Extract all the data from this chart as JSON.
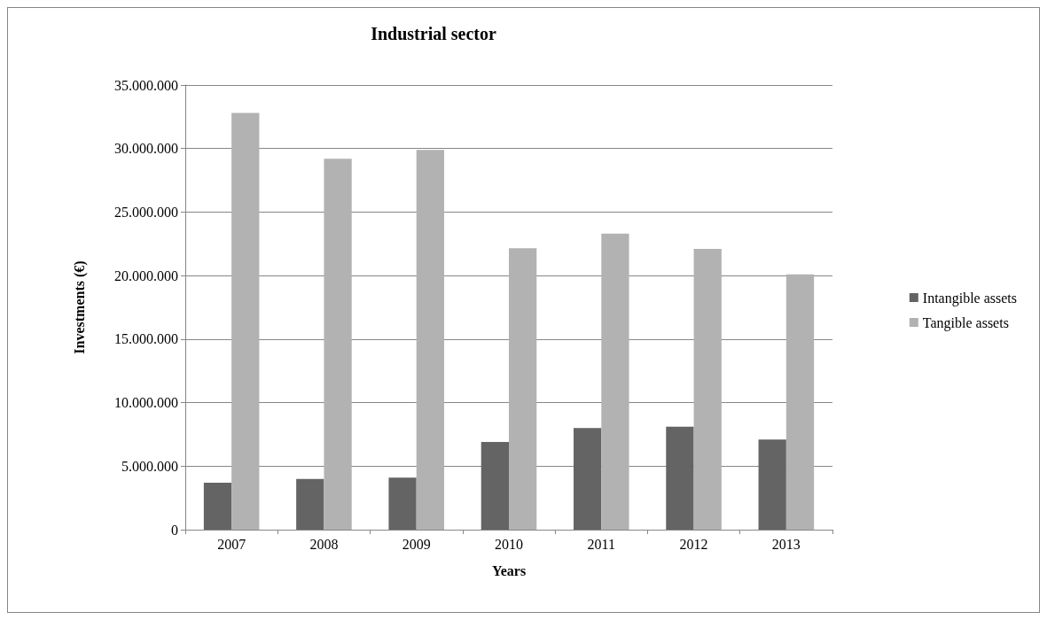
{
  "chart_data": {
    "type": "bar",
    "title": "Industrial sector",
    "xlabel": "Years",
    "ylabel": "Investments (€)",
    "categories": [
      "2007",
      "2008",
      "2009",
      "2010",
      "2011",
      "2012",
      "2013"
    ],
    "series": [
      {
        "name": "Intangible assets",
        "color": "#646464",
        "values": [
          3700000,
          4000000,
          4100000,
          6900000,
          8000000,
          8100000,
          7100000
        ]
      },
      {
        "name": "Tangible assets",
        "color": "#b2b2b2",
        "values": [
          32800000,
          29200000,
          29900000,
          22150000,
          23300000,
          22100000,
          20100000
        ]
      }
    ],
    "ylim": [
      0,
      35000000
    ],
    "yticks": [
      {
        "value": 0,
        "label": "0"
      },
      {
        "value": 5000000,
        "label": "5.000.000"
      },
      {
        "value": 10000000,
        "label": "10.000.000"
      },
      {
        "value": 15000000,
        "label": "15.000.000"
      },
      {
        "value": 20000000,
        "label": "20.000.000"
      },
      {
        "value": 25000000,
        "label": "25.000.000"
      },
      {
        "value": 30000000,
        "label": "30.000.000"
      },
      {
        "value": 35000000,
        "label": "35.000.000"
      }
    ],
    "grid": "y",
    "legend": "right"
  }
}
